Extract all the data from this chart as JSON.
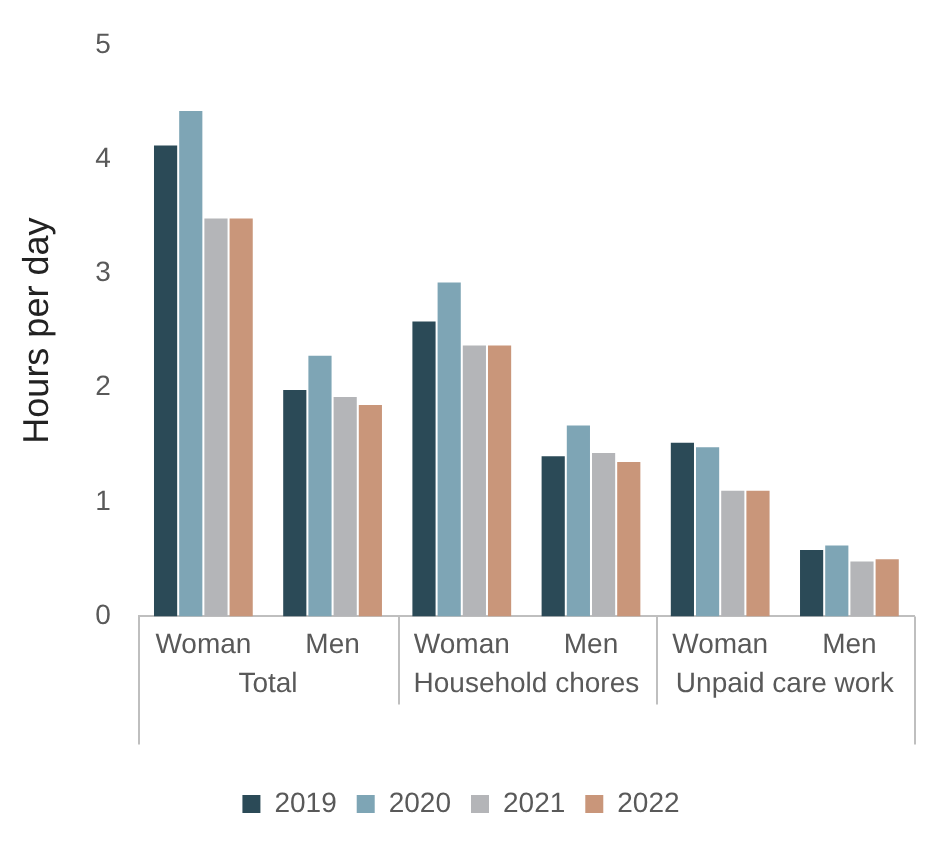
{
  "chart_data": {
    "type": "bar",
    "ylabel": "Hours per day",
    "categories": [
      "Woman",
      "Men",
      "Woman",
      "Men",
      "Woman",
      "Men"
    ],
    "annotations": [
      "Total",
      "Household chores",
      "Unpaid care work"
    ],
    "series": [
      {
        "name": "2019",
        "color": "#2b4a57",
        "values": [
          4.12,
          1.98,
          2.58,
          1.4,
          1.52,
          0.58
        ]
      },
      {
        "name": "2020",
        "color": "#7ea5b5",
        "values": [
          4.42,
          2.28,
          2.92,
          1.67,
          1.48,
          0.62
        ]
      },
      {
        "name": "2021",
        "color": "#b4b5b8",
        "values": [
          3.48,
          1.92,
          2.37,
          1.43,
          1.1,
          0.48
        ]
      },
      {
        "name": "2022",
        "color": "#c9967a",
        "values": [
          3.48,
          1.85,
          2.37,
          1.35,
          1.1,
          0.5
        ]
      }
    ],
    "ylim": [
      0,
      5
    ],
    "yticks": [
      0,
      1,
      2,
      3,
      4,
      5
    ],
    "grid": false,
    "legend": "bottom"
  }
}
